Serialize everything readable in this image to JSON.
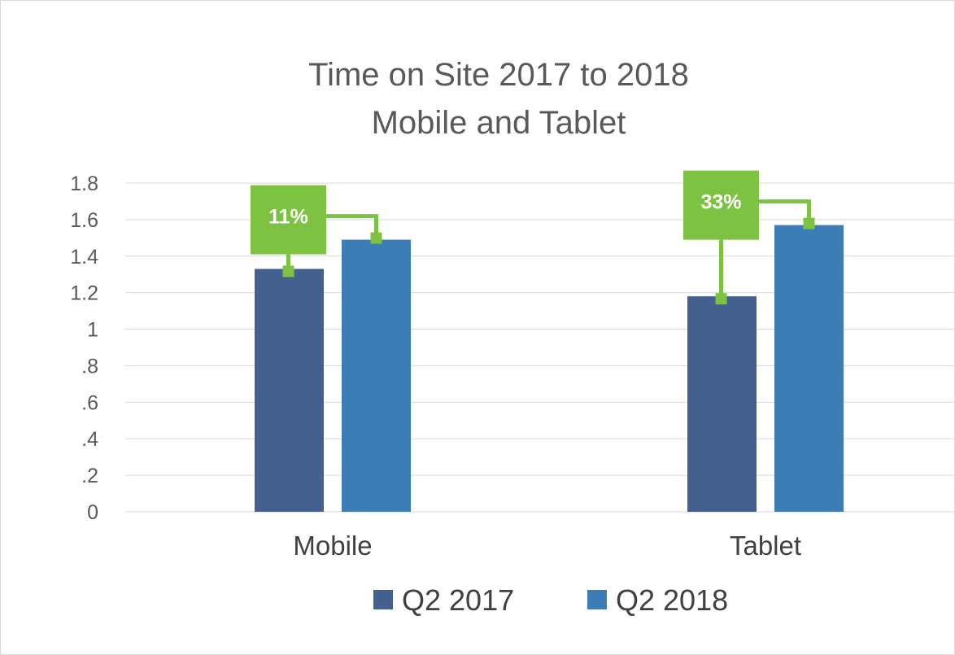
{
  "chart_data": {
    "type": "bar",
    "title": [
      "Time on Site 2017 to 2018",
      "Mobile and Tablet"
    ],
    "categories": [
      "Mobile",
      "Tablet"
    ],
    "series": [
      {
        "name": "Q2 2017",
        "values": [
          1.33,
          1.18
        ]
      },
      {
        "name": "Q2 2018",
        "values": [
          1.49,
          1.57
        ]
      }
    ],
    "y_ticks": [
      "0",
      ".2",
      ".4",
      ".6",
      ".8",
      "1",
      "1.2",
      "1.4",
      "1.6",
      "1.8"
    ],
    "ylim": [
      0,
      1.8
    ],
    "grid": true,
    "legend_position": "bottom",
    "annotations": [
      {
        "category": "Mobile",
        "label": "11%"
      },
      {
        "category": "Tablet",
        "label": "33%"
      }
    ],
    "colors": {
      "series": [
        "#43608e",
        "#3d7db5"
      ],
      "callout": "#7dc243",
      "gridline": "#d9d9d9",
      "text": "#595959"
    }
  }
}
